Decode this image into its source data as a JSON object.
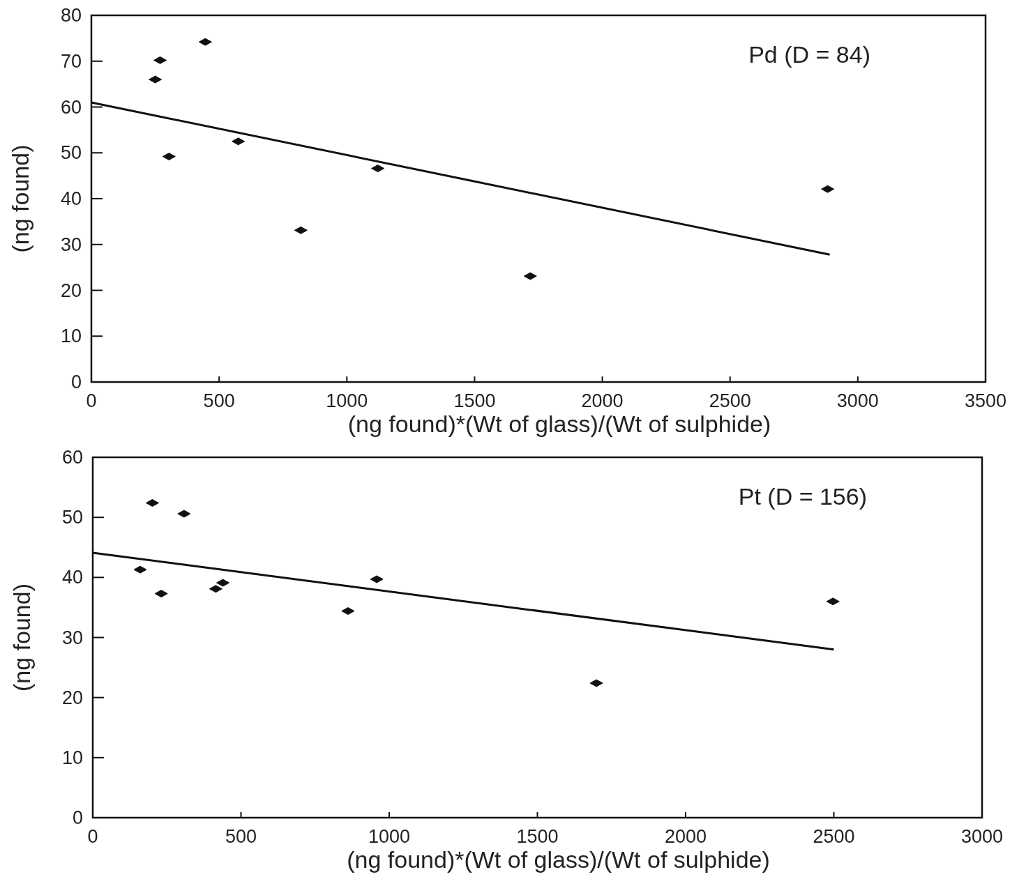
{
  "chart_data": [
    {
      "type": "scatter",
      "xlabel": "(ng found)*(Wt of glass)/(Wt of sulphide)",
      "ylabel": "(ng found)",
      "annotations": [
        "Pd (D = 84)"
      ],
      "xlim": [
        0,
        3500
      ],
      "xticks": [
        0,
        500,
        1000,
        1500,
        2000,
        2500,
        3000,
        3500
      ],
      "ylim": [
        0,
        80
      ],
      "yticks": [
        0,
        10,
        20,
        30,
        40,
        50,
        60,
        70,
        80
      ],
      "series": [
        {
          "marker": "diamond",
          "color": "#111111",
          "x": [
            250,
            269,
            446,
            304,
            575,
            1121,
            820,
            1718,
            2882
          ],
          "values": [
            66.0,
            70.2,
            74.2,
            49.2,
            52.5,
            46.6,
            33.1,
            23.1,
            42.1
          ]
        },
        {
          "type": "line",
          "marker": "none",
          "color": "#111111",
          "x": [
            0,
            2890
          ],
          "values": [
            61.0,
            27.8
          ]
        }
      ]
    },
    {
      "type": "scatter",
      "xlabel": "(ng found)*(Wt of glass)/(Wt of sulphide)",
      "ylabel": "(ng found)",
      "annotations": [
        "Pt (D = 156)"
      ],
      "xlim": [
        0,
        3000
      ],
      "xticks": [
        0,
        500,
        1000,
        1500,
        2000,
        2500,
        3000
      ],
      "ylim": [
        0,
        60
      ],
      "yticks": [
        0,
        10,
        20,
        30,
        40,
        50,
        60
      ],
      "series": [
        {
          "marker": "diamond",
          "color": "#111111",
          "x": [
            201,
            308,
            160,
            231,
            415,
            439,
            861,
            958,
            1699,
            2497
          ],
          "values": [
            52.4,
            50.6,
            41.3,
            37.3,
            38.1,
            39.1,
            34.4,
            39.7,
            22.4,
            36.0
          ]
        },
        {
          "type": "line",
          "marker": "none",
          "color": "#111111",
          "x": [
            0,
            2500
          ],
          "values": [
            44.1,
            28.0
          ]
        }
      ]
    }
  ]
}
